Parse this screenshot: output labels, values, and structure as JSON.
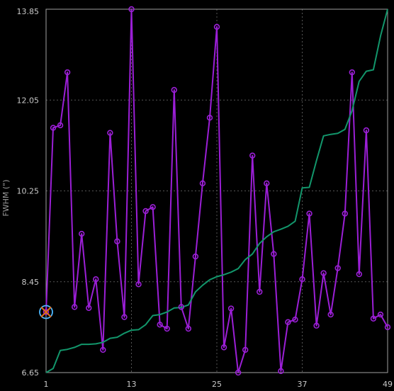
{
  "chart_data": {
    "type": "line",
    "ylabel": "FWHM (\")",
    "xlabel": "",
    "xlim": [
      1,
      49
    ],
    "ylim": [
      6.65,
      13.85
    ],
    "x_ticks": [
      1,
      13,
      25,
      37,
      49
    ],
    "y_ticks": [
      6.65,
      8.45,
      10.25,
      12.05,
      13.85
    ],
    "y_tick_labels": [
      "6.65",
      "8.45",
      "10.25",
      "12.05",
      "13.85"
    ],
    "grid": true,
    "colors": {
      "background": "#000000",
      "frame": "#a0a0a0",
      "grid": "#555555"
    },
    "series": [
      {
        "style": "markers",
        "color": "#9b1fd6",
        "x": [
          1,
          2,
          3,
          4,
          5,
          6,
          7,
          8,
          9,
          10,
          11,
          12,
          13,
          14,
          15,
          16,
          17,
          18,
          19,
          20,
          21,
          22,
          23,
          24,
          25,
          26,
          27,
          28,
          29,
          30,
          31,
          32,
          33,
          34,
          35,
          36,
          37,
          38,
          39,
          40,
          41,
          42,
          43,
          44,
          45,
          46,
          47,
          48,
          49
        ],
        "values": [
          7.85,
          11.5,
          11.55,
          12.6,
          7.95,
          9.4,
          7.93,
          8.5,
          7.1,
          11.4,
          9.25,
          7.75,
          13.85,
          8.4,
          9.85,
          9.93,
          7.6,
          7.52,
          12.25,
          7.95,
          7.52,
          8.95,
          10.4,
          11.7,
          13.5,
          7.15,
          7.92,
          6.65,
          7.1,
          10.95,
          8.25,
          10.4,
          9.0,
          6.68,
          7.65,
          7.7,
          8.5,
          9.8,
          7.58,
          8.62,
          7.8,
          8.72,
          9.8,
          12.6,
          8.6,
          11.45,
          7.72,
          7.8,
          7.55
        ]
      },
      {
        "style": "line",
        "color": "#12966b",
        "x": [
          1,
          2,
          3,
          4,
          5,
          6,
          7,
          8,
          9,
          10,
          11,
          12,
          13,
          14,
          15,
          16,
          17,
          18,
          19,
          20,
          21,
          22,
          23,
          24,
          25,
          26,
          27,
          28,
          29,
          30,
          31,
          32,
          33,
          34,
          35,
          36,
          37,
          38,
          39,
          40,
          41,
          42,
          43,
          44,
          45,
          46,
          47,
          48,
          49
        ],
        "values": [
          6.65,
          6.73,
          7.09,
          7.11,
          7.15,
          7.21,
          7.21,
          7.22,
          7.25,
          7.33,
          7.35,
          7.43,
          7.49,
          7.5,
          7.6,
          7.78,
          7.8,
          7.85,
          7.93,
          7.94,
          7.99,
          8.25,
          8.38,
          8.49,
          8.55,
          8.59,
          8.64,
          8.71,
          8.89,
          9.0,
          9.21,
          9.34,
          9.44,
          9.49,
          9.55,
          9.65,
          10.31,
          10.32,
          10.85,
          11.34,
          11.37,
          11.39,
          11.47,
          11.84,
          12.42,
          12.62,
          12.65,
          13.32,
          13.85
        ]
      }
    ],
    "annotation": {
      "x": 1,
      "y": 7.85,
      "marker": "crossed-circle",
      "colors": [
        "#e06a1a",
        "#4db8ff"
      ]
    }
  }
}
